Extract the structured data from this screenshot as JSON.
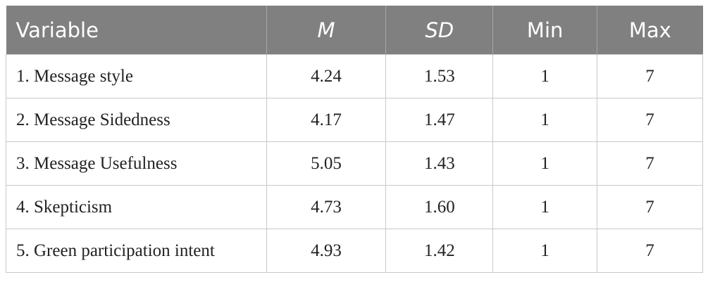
{
  "table": {
    "header": [
      "Variable",
      "M",
      "SD",
      "Min",
      "Max"
    ],
    "rows": [
      [
        "1. Message style",
        "4.24",
        "1.53",
        "1",
        "7"
      ],
      [
        "2. Message Sidedness",
        "4.17",
        "1.47",
        "1",
        "7"
      ],
      [
        "3. Message Usefulness",
        "5.05",
        "1.43",
        "1",
        "7"
      ],
      [
        "4. Skepticism",
        "4.73",
        "1.60",
        "1",
        "7"
      ],
      [
        "5. Green participation intent",
        "4.93",
        "1.42",
        "1",
        "7"
      ]
    ]
  }
}
